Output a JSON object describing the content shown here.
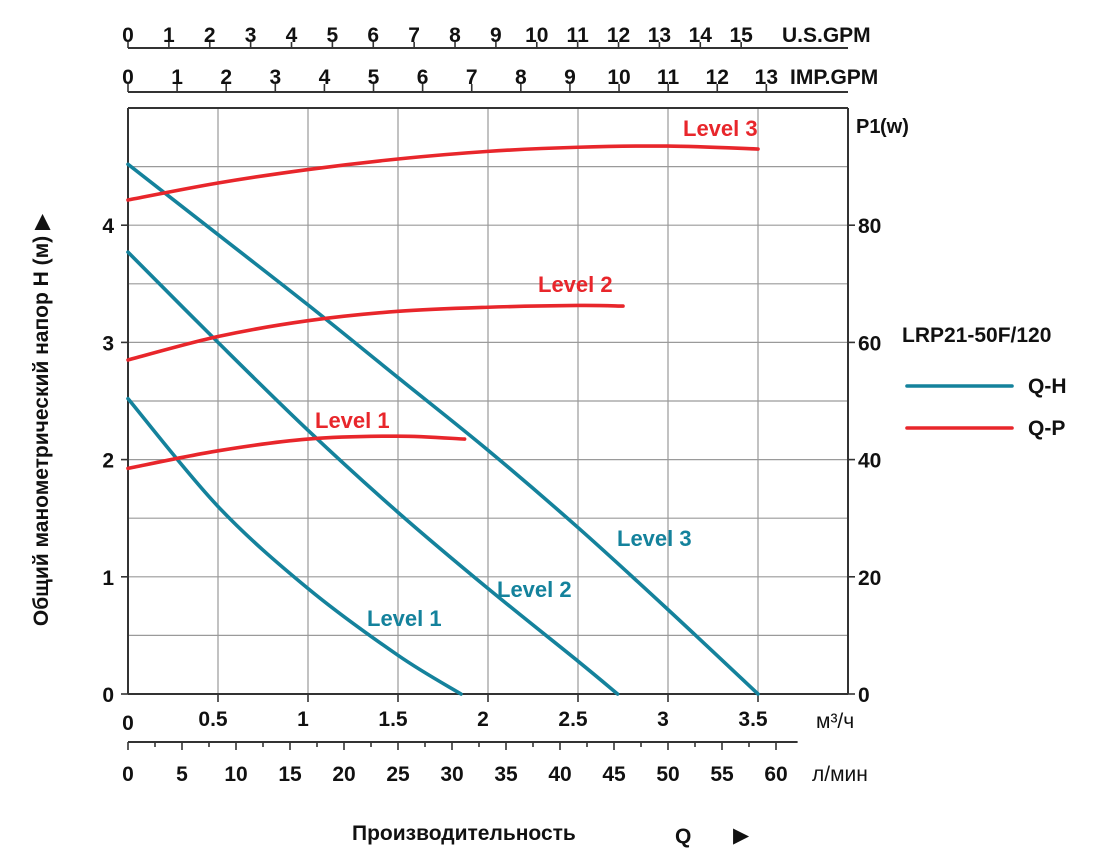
{
  "chart_data": {
    "type": "line",
    "model": "LRP21-50F/120",
    "ylabel": "Общий манометрический напор H (м)",
    "ylabel_arrow": "▶",
    "xlabel": "Производительность",
    "xlabel_symbol": "Q",
    "xlabel_arrow": "▶",
    "xlim": [
      0,
      4
    ],
    "ylim_left": [
      0,
      5
    ],
    "ylim_right": [
      0,
      100
    ],
    "grid": true,
    "legend_position": "right",
    "legend": [
      {
        "label": "Q-H",
        "color": "#14829c"
      },
      {
        "label": "Q-P",
        "color": "#e8262b"
      }
    ],
    "axes": {
      "left": {
        "ticks": [
          "0",
          "1",
          "2",
          "3",
          "4"
        ]
      },
      "right": {
        "label_main": "P1",
        "label_unit": "(w)",
        "ticks": [
          "0",
          "20",
          "40",
          "60",
          "80"
        ]
      },
      "bottom_m3h": {
        "unit": "м³/ч",
        "zero": "0",
        "ticks": [
          "0.5",
          "1",
          "1.5",
          "2",
          "2.5",
          "3",
          "3.5"
        ]
      },
      "bottom_lmin": {
        "unit": "л/мин",
        "ticks": [
          "0",
          "5",
          "10",
          "15",
          "20",
          "25",
          "30",
          "35",
          "40",
          "45",
          "50",
          "55",
          "60"
        ]
      },
      "top_usgpm": {
        "unit": "U.S.GPM",
        "ticks": [
          "0",
          "1",
          "2",
          "3",
          "4",
          "5",
          "6",
          "7",
          "8",
          "9",
          "10",
          "11",
          "12",
          "13",
          "14",
          "15"
        ]
      },
      "top_impgpm": {
        "unit": "IMP.GPM",
        "ticks": [
          "0",
          "1",
          "2",
          "3",
          "4",
          "5",
          "6",
          "7",
          "8",
          "9",
          "10",
          "11",
          "12",
          "13"
        ]
      }
    },
    "series_qh": [
      {
        "name": "Level 1",
        "x": [
          0,
          0.5,
          1,
          1.5,
          1.85
        ],
        "y": [
          2.52,
          1.6,
          0.9,
          0.33,
          0
        ]
      },
      {
        "name": "Level 2",
        "x": [
          0,
          0.5,
          1,
          1.5,
          2,
          2.5,
          2.72
        ],
        "y": [
          3.77,
          3.0,
          2.25,
          1.55,
          0.9,
          0.28,
          0
        ]
      },
      {
        "name": "Level 3",
        "x": [
          0,
          0.5,
          1,
          1.5,
          2,
          2.5,
          3,
          3.5
        ],
        "y": [
          4.52,
          3.92,
          3.32,
          2.7,
          2.08,
          1.42,
          0.72,
          0
        ]
      }
    ],
    "series_qp": [
      {
        "name": "Level 1",
        "x": [
          0,
          0.5,
          1,
          1.5,
          1.87
        ],
        "y": [
          38.5,
          41.5,
          43.5,
          44,
          43.5
        ]
      },
      {
        "name": "Level 2",
        "x": [
          0,
          0.5,
          1,
          1.5,
          2,
          2.5,
          2.75
        ],
        "y": [
          57,
          61,
          63.7,
          65.3,
          66,
          66.3,
          66.2
        ]
      },
      {
        "name": "Level 3",
        "x": [
          0,
          0.5,
          1,
          1.5,
          2,
          2.5,
          3,
          3.5
        ],
        "y": [
          84.3,
          87.2,
          89.5,
          91.3,
          92.6,
          93.3,
          93.5,
          93
        ]
      }
    ]
  }
}
